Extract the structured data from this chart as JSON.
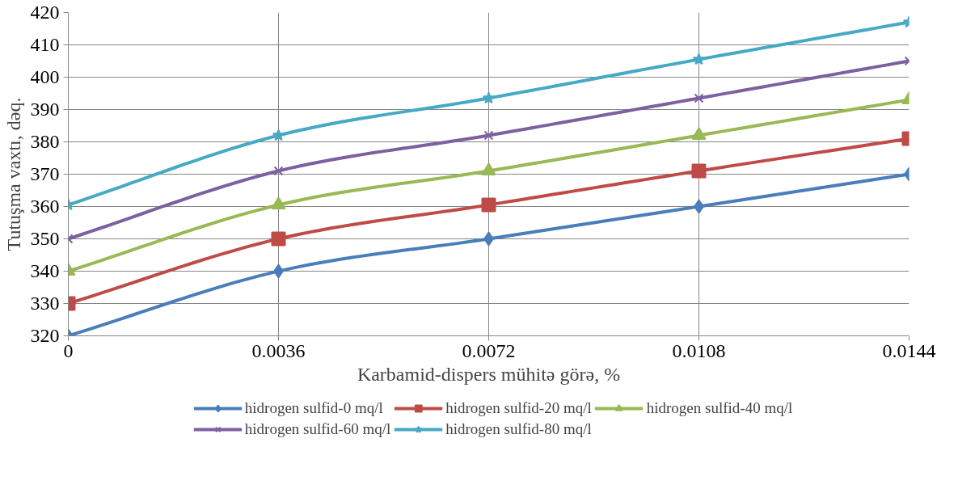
{
  "chart_data": {
    "type": "line",
    "xlabel": "Karbamid-dispers mühitə görə, %",
    "ylabel": "Tutuşma vaxtı, dəq.",
    "x": [
      0,
      0.0036,
      0.0072,
      0.0108,
      0.0144
    ],
    "xlim": [
      0,
      0.0144
    ],
    "xticks": [
      0,
      0.0036,
      0.0072,
      0.0108,
      0.0144
    ],
    "ylim": [
      320,
      420
    ],
    "yticks": [
      320,
      330,
      340,
      350,
      360,
      370,
      380,
      390,
      400,
      410,
      420
    ],
    "grid": true,
    "legend": "bottom",
    "line_style": "solid",
    "series": [
      {
        "name": "hidrogen sulfid-0 mq/l",
        "color": "#4a7ebb",
        "marker": "diamond",
        "values": [
          320,
          340,
          350,
          360,
          370
        ]
      },
      {
        "name": "hidrogen sulfid-20 mq/l",
        "color": "#be4b48",
        "marker": "square",
        "values": [
          330,
          350,
          360.5,
          371,
          381
        ]
      },
      {
        "name": "hidrogen sulfid-40 mq/l",
        "color": "#98b954",
        "marker": "triangle",
        "values": [
          340,
          360.5,
          371,
          382,
          393
        ]
      },
      {
        "name": "hidrogen sulfid-60 mq/l",
        "color": "#7d60a0",
        "marker": "cross",
        "values": [
          350,
          371,
          382,
          393.5,
          405
        ]
      },
      {
        "name": "hidrogen sulfid-80 mq/l",
        "color": "#46aac5",
        "marker": "star",
        "values": [
          360.5,
          382,
          393.5,
          405.5,
          417
        ]
      }
    ]
  }
}
